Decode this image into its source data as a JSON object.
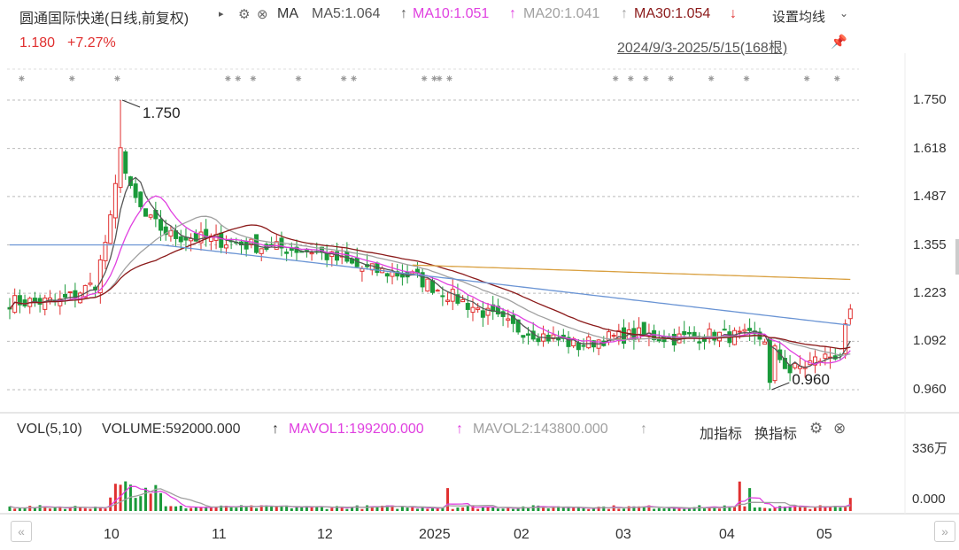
{
  "header": {
    "title": "圆通国际快递(日线,前复权)",
    "indicator": "MA",
    "ma5": "MA5:1.064",
    "ma10": "MA10:1.051",
    "ma20": "MA20:1.041",
    "ma30": "MA30:1.054",
    "settings_label": "设置均线",
    "price": "1.180",
    "change": "+7.27%",
    "range": "2024/9/3-2025/5/15(168根)",
    "arrow_up": "↑",
    "arrow_down": "↓"
  },
  "volume_header": {
    "vol": "VOL(5,10)",
    "volume": "VOLUME:592000.000",
    "mavol1": "MAVOL1:199200.000",
    "mavol2": "MAVOL2:143800.000",
    "add_indicator": "加指标",
    "switch_indicator": "换指标"
  },
  "colors": {
    "up": "#e03030",
    "down": "#1a9a3a",
    "ma5": "#555555",
    "ma10": "#e040e0",
    "ma20": "#a0a0a0",
    "ma30": "#8b1a1a",
    "ma_blue": "#6a94d4",
    "ma_orange": "#d9a040"
  },
  "chart_data": [
    {
      "type": "candlestick",
      "y_ticks": [
        "1.750",
        "1.618",
        "1.487",
        "1.355",
        "1.223",
        "1.092",
        "0.960"
      ],
      "ylim": [
        0.96,
        1.75
      ],
      "x_labels": [
        "10",
        "11",
        "12",
        "2025",
        "02",
        "03",
        "04",
        "05"
      ],
      "annotations": [
        {
          "text": "1.750",
          "label": "high"
        },
        {
          "text": "0.960",
          "label": "low"
        }
      ],
      "last_close": 1.18,
      "series": [
        {
          "name": "MA5",
          "last": 1.064
        },
        {
          "name": "MA10",
          "last": 1.051
        },
        {
          "name": "MA20",
          "last": 1.041
        },
        {
          "name": "MA30",
          "last": 1.054
        }
      ]
    },
    {
      "type": "bar",
      "y_ticks": [
        "336万",
        "0.000"
      ],
      "series": [
        {
          "name": "MAVOL1",
          "last": 199200
        },
        {
          "name": "MAVOL2",
          "last": 143800
        }
      ]
    }
  ]
}
